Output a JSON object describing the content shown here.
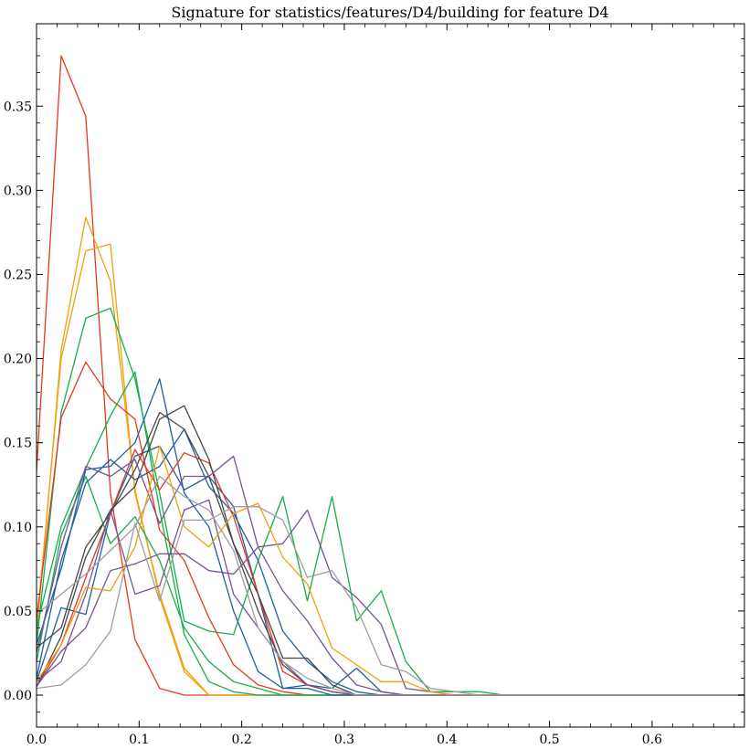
{
  "chart_data": {
    "type": "line",
    "title": "Signature for statistics/features/D4/building for feature D4",
    "xlabel": "",
    "ylabel": "",
    "xlim": [
      0.0,
      0.69
    ],
    "ylim": [
      -0.019,
      0.399
    ],
    "x_ticks": [
      0.0,
      0.1,
      0.2,
      0.3,
      0.4,
      0.5,
      0.6
    ],
    "x_tick_labels": [
      "0.0",
      "0.1",
      "0.2",
      "0.3",
      "0.4",
      "0.5",
      "0.6"
    ],
    "y_ticks": [
      0.0,
      0.05,
      0.1,
      0.15,
      0.2,
      0.25,
      0.3,
      0.35
    ],
    "y_tick_labels": [
      "0.00",
      "0.05",
      "0.10",
      "0.15",
      "0.20",
      "0.25",
      "0.30",
      "0.35"
    ],
    "grid": false,
    "x": [
      0.0,
      0.024,
      0.048,
      0.072,
      0.096,
      0.12,
      0.144,
      0.168,
      0.192,
      0.216,
      0.24,
      0.264,
      0.288,
      0.312,
      0.336,
      0.36,
      0.384,
      0.408,
      0.432,
      0.456,
      0.69
    ],
    "series": [
      {
        "color": "#e8381c",
        "values": [
          0.133,
          0.38,
          0.344,
          0.12,
          0.033,
          0.004,
          0.0,
          0.0,
          0.0,
          0.0,
          0.0,
          0.0,
          0.0,
          0.0,
          0.0,
          0.0,
          0.0,
          0.0,
          0.0,
          0.0,
          0.0
        ]
      },
      {
        "color": "#f2a00c",
        "values": [
          0.04,
          0.2,
          0.264,
          0.268,
          0.12,
          0.06,
          0.016,
          0.0,
          0.0,
          0.0,
          0.0,
          0.0,
          0.0,
          0.0,
          0.0,
          0.0,
          0.0,
          0.0,
          0.0,
          0.0,
          0.0
        ]
      },
      {
        "color": "#f2a00c",
        "values": [
          0.035,
          0.205,
          0.284,
          0.246,
          0.122,
          0.058,
          0.014,
          0.0,
          0.0,
          0.0,
          0.0,
          0.0,
          0.0,
          0.0,
          0.0,
          0.0,
          0.0,
          0.0,
          0.0,
          0.0,
          0.0
        ]
      },
      {
        "color": "#12b04a",
        "values": [
          0.03,
          0.168,
          0.224,
          0.23,
          0.188,
          0.12,
          0.044,
          0.038,
          0.036,
          0.08,
          0.118,
          0.056,
          0.118,
          0.044,
          0.062,
          0.02,
          0.002,
          0.002,
          0.002,
          0.0,
          0.0
        ]
      },
      {
        "color": "#e8381c",
        "values": [
          0.045,
          0.165,
          0.198,
          0.176,
          0.164,
          0.098,
          0.08,
          0.046,
          0.018,
          0.006,
          0.002,
          0.0,
          0.0,
          0.0,
          0.0,
          0.0,
          0.0,
          0.0,
          0.0,
          0.0,
          0.0
        ]
      },
      {
        "color": "#12b04a",
        "values": [
          0.04,
          0.1,
          0.135,
          0.166,
          0.192,
          0.11,
          0.036,
          0.008,
          0.002,
          0.0,
          0.0,
          0.0,
          0.0,
          0.0,
          0.0,
          0.0,
          0.0,
          0.0,
          0.0,
          0.0,
          0.0
        ]
      },
      {
        "color": "#12b04a",
        "values": [
          0.02,
          0.095,
          0.13,
          0.09,
          0.106,
          0.08,
          0.04,
          0.02,
          0.008,
          0.004,
          0.0,
          0.0,
          0.0,
          0.0,
          0.0,
          0.0,
          0.0,
          0.0,
          0.0,
          0.0,
          0.0
        ]
      },
      {
        "color": "#1f5fa0",
        "values": [
          0.03,
          0.075,
          0.134,
          0.136,
          0.15,
          0.188,
          0.12,
          0.1,
          0.05,
          0.014,
          0.004,
          0.004,
          0.0,
          0.0,
          0.0,
          0.0,
          0.0,
          0.0,
          0.0,
          0.0,
          0.0
        ]
      },
      {
        "color": "#1f5fa0",
        "values": [
          0.01,
          0.08,
          0.126,
          0.14,
          0.128,
          0.136,
          0.158,
          0.124,
          0.108,
          0.08,
          0.038,
          0.02,
          0.008,
          0.002,
          0.0,
          0.0,
          0.0,
          0.0,
          0.0,
          0.0,
          0.0
        ]
      },
      {
        "color": "#1f5fa0",
        "values": [
          0.008,
          0.052,
          0.048,
          0.108,
          0.142,
          0.148,
          0.122,
          0.13,
          0.112,
          0.06,
          0.004,
          0.006,
          0.004,
          0.016,
          0.002,
          0.0,
          0.0,
          0.0,
          0.0,
          0.0,
          0.0
        ]
      },
      {
        "color": "#e8381c",
        "values": [
          0.005,
          0.03,
          0.07,
          0.108,
          0.146,
          0.122,
          0.144,
          0.138,
          0.106,
          0.06,
          0.014,
          0.006,
          0.002,
          0.0,
          0.0,
          0.0,
          0.0,
          0.0,
          0.0,
          0.0,
          0.0
        ]
      },
      {
        "color": "#474747",
        "values": [
          0.028,
          0.04,
          0.088,
          0.108,
          0.134,
          0.168,
          0.158,
          0.13,
          0.09,
          0.05,
          0.018,
          0.006,
          0.002,
          0.0,
          0.0,
          0.0,
          0.0,
          0.0,
          0.0,
          0.0,
          0.0
        ]
      },
      {
        "color": "#474747",
        "values": [
          0.005,
          0.035,
          0.082,
          0.11,
          0.124,
          0.164,
          0.172,
          0.14,
          0.09,
          0.06,
          0.022,
          0.022,
          0.006,
          0.0,
          0.0,
          0.0,
          0.0,
          0.0,
          0.0,
          0.0,
          0.0
        ]
      },
      {
        "color": "#7a5294",
        "values": [
          0.025,
          0.088,
          0.136,
          0.13,
          0.14,
          0.102,
          0.13,
          0.13,
          0.142,
          0.088,
          0.09,
          0.11,
          0.07,
          0.058,
          0.042,
          0.004,
          0.002,
          0.0,
          0.0,
          0.0,
          0.0
        ]
      },
      {
        "color": "#7a5294",
        "values": [
          0.005,
          0.026,
          0.04,
          0.074,
          0.078,
          0.084,
          0.084,
          0.074,
          0.072,
          0.088,
          0.062,
          0.044,
          0.022,
          0.006,
          0.002,
          0.0,
          0.0,
          0.0,
          0.0,
          0.0,
          0.0
        ]
      },
      {
        "color": "#7a5294",
        "values": [
          0.008,
          0.02,
          0.06,
          0.11,
          0.06,
          0.065,
          0.11,
          0.116,
          0.06,
          0.04,
          0.02,
          0.006,
          0.002,
          0.0,
          0.0,
          0.0,
          0.0,
          0.0,
          0.0,
          0.0,
          0.0
        ]
      },
      {
        "color": "#f2a00c",
        "values": [
          0.008,
          0.03,
          0.064,
          0.062,
          0.088,
          0.148,
          0.1,
          0.088,
          0.108,
          0.114,
          0.082,
          0.066,
          0.028,
          0.018,
          0.008,
          0.008,
          0.002,
          0.0,
          0.0,
          0.0,
          0.0
        ]
      },
      {
        "color": "#9e9e9e",
        "values": [
          0.004,
          0.006,
          0.018,
          0.038,
          0.102,
          0.056,
          0.104,
          0.104,
          0.112,
          0.112,
          0.104,
          0.07,
          0.074,
          0.052,
          0.018,
          0.014,
          0.004,
          0.002,
          0.0,
          0.0,
          0.0
        ]
      },
      {
        "color": "#9e9e9e",
        "values": [
          0.048,
          0.06,
          0.072,
          0.086,
          0.1,
          0.13,
          0.118,
          0.11,
          0.086,
          0.04,
          0.02,
          0.01,
          0.004,
          0.0,
          0.0,
          0.0,
          0.0,
          0.0,
          0.0,
          0.0,
          0.0
        ]
      }
    ]
  }
}
